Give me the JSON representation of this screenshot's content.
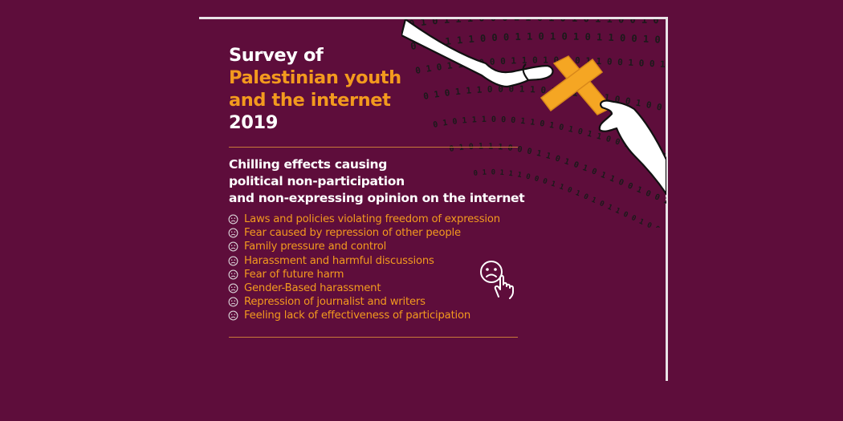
{
  "title": {
    "line1": "Survey of",
    "line2": "Palestinian youth",
    "line3": "and the internet",
    "line4": "2019"
  },
  "subtitle": {
    "line1": "Chilling effects causing",
    "line2": "political non-participation",
    "line3": "and non-expressing opinion on the internet"
  },
  "reasons": [
    "Laws and policies violating freedom of expression",
    "Fear caused by repression of other people",
    "Family pressure and control",
    "Harassment and harmful discussions",
    "Fear of future harm",
    "Gender-Based harassment",
    "Repression of journalist and writers",
    "Feeling lack of effectiveness of participation"
  ],
  "binary_strip": "0 1 0 1 1 1 0 0 0 1 1 0 1 0 1 0 1 1 0 0 1 0 0 1 1 1 0 1 0 1 1 0 0 1 0 1",
  "colors": {
    "background": "#5e0d3b",
    "accent_orange": "#f39a1e",
    "tape": "#f5a623",
    "frame": "#e9e3e7"
  },
  "icons": {
    "reason_bullet": "sad-face-icon",
    "cursor_face": "sad-face-pointer-icon",
    "censorship": "hands-with-tape-x-icon"
  }
}
